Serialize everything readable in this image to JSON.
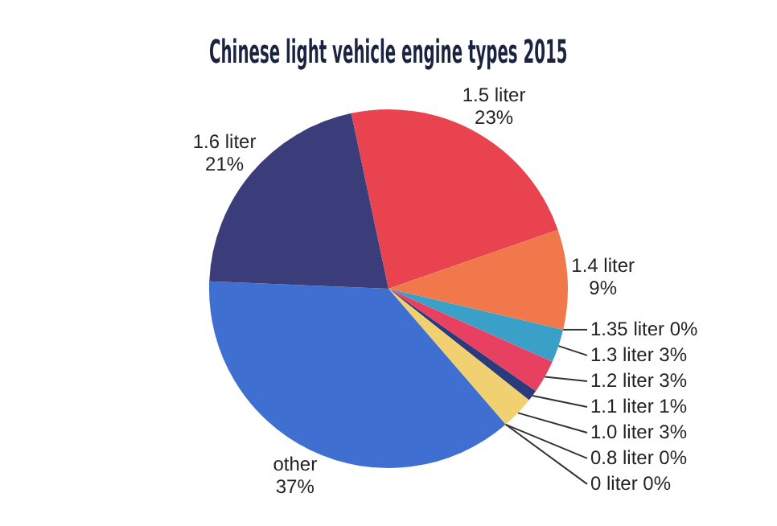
{
  "chart_data": {
    "type": "pie",
    "title": "Chinese light vehicle engine types 2015",
    "categories": [
      "1.5 liter",
      "1.4 liter",
      "1.35 liter",
      "1.3 liter",
      "1.2 liter",
      "1.1 liter",
      "1.0 liter",
      "0.8 liter",
      "0 liter",
      "other",
      "1.6 liter"
    ],
    "values": [
      23,
      9,
      0,
      3,
      3,
      1,
      3,
      0,
      0,
      37,
      21
    ],
    "value_labels": [
      "23%",
      "9%",
      "0%",
      "3%",
      "3%",
      "1%",
      "3%",
      "0%",
      "0%",
      "37%",
      "21%"
    ],
    "colors": [
      "#e8434f",
      "#f0784a",
      "#e87050",
      "#3aa0c8",
      "#e84060",
      "#2a3a7a",
      "#f0d070",
      "#d8c8a0",
      "#c0c0c0",
      "#3f6fd0",
      "#3b3d7a"
    ]
  }
}
